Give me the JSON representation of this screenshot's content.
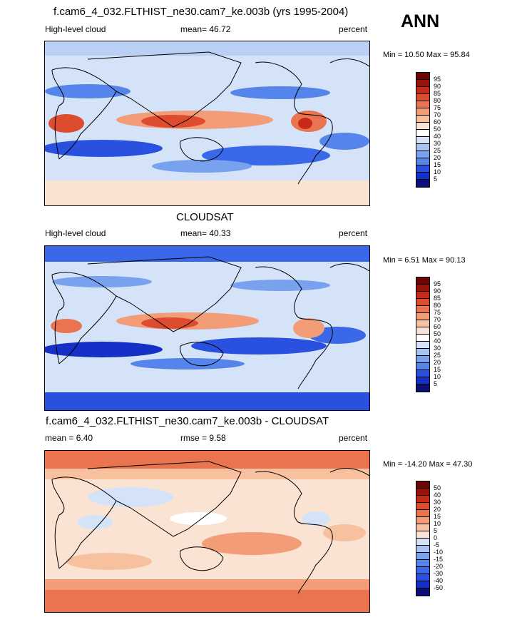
{
  "season": "ANN",
  "panels": [
    {
      "title": "f.cam6_4_032.FLTHIST_ne30.cam7_ke.003b (yrs 1995-2004)",
      "left_label": "High-level cloud",
      "mean_text": "mean=  46.72",
      "right_label": "percent",
      "minmax": "Min =  10.50 Max =  95.84",
      "colorbar_labels": [
        "95",
        "90",
        "85",
        "80",
        "75",
        "70",
        "60",
        "50",
        "40",
        "30",
        "25",
        "20",
        "15",
        "10",
        "5"
      ]
    },
    {
      "title": "CLOUDSAT",
      "left_label": "High-level cloud",
      "mean_text": "mean=  40.33",
      "right_label": "percent",
      "minmax": "Min =  6.51 Max =  90.13",
      "colorbar_labels": [
        "95",
        "90",
        "85",
        "80",
        "75",
        "70",
        "60",
        "50",
        "40",
        "30",
        "25",
        "20",
        "15",
        "10",
        "5"
      ]
    },
    {
      "title": "f.cam6_4_032.FLTHIST_ne30.cam7_ke.003b - CLOUDSAT",
      "left_label": "mean =   6.40",
      "mean_text": "rmse =   9.58",
      "right_label": "percent",
      "minmax": "Min = -14.20 Max =  47.30",
      "colorbar_labels": [
        "50",
        "40",
        "30",
        "20",
        "15",
        "10",
        "5",
        "0",
        "-5",
        "-10",
        "-15",
        "-20",
        "-30",
        "-40",
        "-50"
      ]
    }
  ],
  "colors": {
    "abs_scale": [
      "#0b0f78",
      "#1530c6",
      "#2a50e0",
      "#3a68e8",
      "#5585ea",
      "#79a2ee",
      "#a6c3f2",
      "#d4e3f8",
      "#fbe3d3",
      "#f7c1a0",
      "#f29c78",
      "#ea7350",
      "#dd4c2e",
      "#c62a18",
      "#9a1208",
      "#6b0806"
    ],
    "diff_scale": [
      "#0b0f78",
      "#1530c6",
      "#2a50e0",
      "#3a68e8",
      "#5585ea",
      "#79a2ee",
      "#a6c3f2",
      "#d4e3f8",
      "#fbe3d3",
      "#f7c1a0",
      "#f29c78",
      "#ea7350",
      "#dd4c2e",
      "#c62a18",
      "#9a1208",
      "#6b0806"
    ]
  }
}
